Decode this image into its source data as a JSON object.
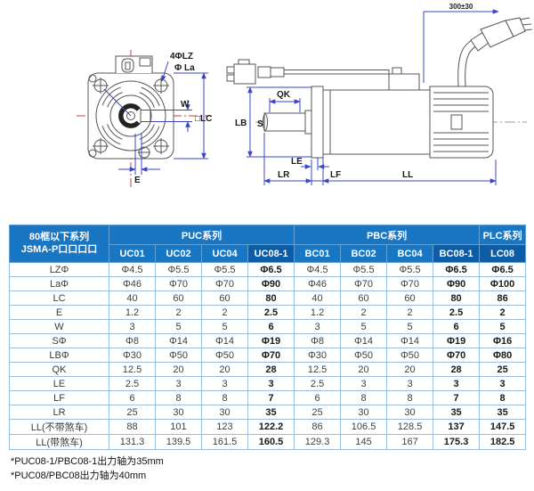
{
  "diagram": {
    "front": {
      "label_4lz": "4ΦLZ",
      "label_la": "Φ La",
      "label_w": "W",
      "label_lc": "□LC",
      "label_e": "E"
    },
    "side": {
      "label_cable": "300±30",
      "label_qk": "QK",
      "label_lb": "LB",
      "label_s": "S",
      "label_le": "LE",
      "label_lr": "LR",
      "label_lf": "LF",
      "label_ll": "LL"
    }
  },
  "table": {
    "corner_header": {
      "line1": "80框以下系列",
      "line2": "JSMA-P口口口口"
    },
    "groups": [
      {
        "label": "PUC系列",
        "span": 4
      },
      {
        "label": "PBC系列",
        "span": 4
      },
      {
        "label": "PLC系列",
        "span": 1
      }
    ],
    "columns": [
      "UC01",
      "UC02",
      "UC04",
      "UC08-1",
      "BC01",
      "BC02",
      "BC04",
      "BC08-1",
      "LC08"
    ],
    "highlight_columns": [
      "UC08-1",
      "BC08-1",
      "LC08"
    ],
    "rows": [
      {
        "label": "LZΦ",
        "values": [
          "Φ4.5",
          "Φ5.5",
          "Φ5.5",
          "Φ6.5",
          "Φ4.5",
          "Φ5.5",
          "Φ5.5",
          "Φ6.5",
          "Φ6.5"
        ]
      },
      {
        "label": "LaΦ",
        "values": [
          "Φ46",
          "Φ70",
          "Φ70",
          "Φ90",
          "Φ46",
          "Φ70",
          "Φ70",
          "Φ90",
          "Φ100"
        ]
      },
      {
        "label": "LC",
        "values": [
          "40",
          "60",
          "60",
          "80",
          "40",
          "60",
          "60",
          "80",
          "86"
        ]
      },
      {
        "label": "E",
        "values": [
          "1.2",
          "2",
          "2",
          "2.5",
          "1.2",
          "2",
          "2",
          "2.5",
          "2"
        ]
      },
      {
        "label": "W",
        "values": [
          "3",
          "5",
          "5",
          "6",
          "3",
          "5",
          "5",
          "6",
          "5"
        ]
      },
      {
        "label": "SΦ",
        "values": [
          "Φ8",
          "Φ14",
          "Φ14",
          "Φ19",
          "Φ8",
          "Φ14",
          "Φ14",
          "Φ19",
          "Φ16"
        ]
      },
      {
        "label": "LBΦ",
        "values": [
          "Φ30",
          "Φ50",
          "Φ50",
          "Φ70",
          "Φ30",
          "Φ50",
          "Φ50",
          "Φ70",
          "Φ80"
        ]
      },
      {
        "label": "QK",
        "values": [
          "12.5",
          "20",
          "20",
          "28",
          "12.5",
          "20",
          "20",
          "28",
          "25"
        ]
      },
      {
        "label": "LE",
        "values": [
          "2.5",
          "3",
          "3",
          "3",
          "2.5",
          "3",
          "3",
          "3",
          "3"
        ]
      },
      {
        "label": "LF",
        "values": [
          "6",
          "8",
          "8",
          "7",
          "6",
          "8",
          "8",
          "7",
          "8"
        ]
      },
      {
        "label": "LR",
        "values": [
          "25",
          "30",
          "30",
          "35",
          "25",
          "30",
          "30",
          "35",
          "35"
        ]
      },
      {
        "label": "LL(不带煞车)",
        "values": [
          "88",
          "101",
          "123",
          "122.2",
          "86",
          "106.5",
          "128.5",
          "137",
          "147.5"
        ]
      },
      {
        "label": "LL(带煞车)",
        "values": [
          "131.3",
          "139.5",
          "161.5",
          "160.5",
          "129.3",
          "145",
          "167",
          "175.3",
          "182.5"
        ]
      }
    ]
  },
  "footnotes": [
    "*PUC08-1/PBC08-1出力轴为35mm",
    "*PUC08/PBC08出力轴为40mm"
  ],
  "colors": {
    "header_bg": "#1876c3",
    "header_bg_dark": "#0d5ca8",
    "table_border": "#96bfe6",
    "dimension_blue": "#3b47c2",
    "centerline_red": "#c84040"
  }
}
